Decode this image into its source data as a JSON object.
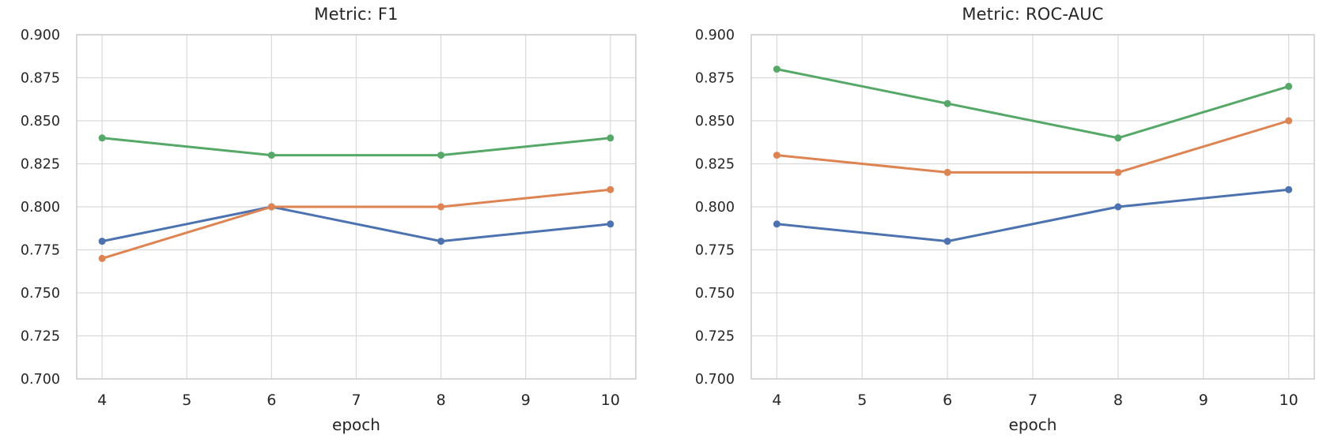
{
  "palette": {
    "blue": "#4C72B0",
    "orange": "#DD8452",
    "green": "#55A868",
    "grid": "#d9d9d9",
    "axis": "#cccccc",
    "text": "#262626",
    "background": "#ffffff"
  },
  "chart_data": [
    {
      "type": "line",
      "title": "Metric: F1",
      "xlabel": "epoch",
      "ylabel": "",
      "x": [
        4,
        6,
        8,
        10
      ],
      "xticks": [
        4,
        5,
        6,
        7,
        8,
        9,
        10
      ],
      "xtick_labels": [
        "4",
        "5",
        "6",
        "7",
        "8",
        "9",
        "10"
      ],
      "yticks": [
        0.7,
        0.725,
        0.75,
        0.775,
        0.8,
        0.825,
        0.85,
        0.875,
        0.9
      ],
      "ytick_labels": [
        "0.700",
        "0.725",
        "0.750",
        "0.775",
        "0.800",
        "0.825",
        "0.850",
        "0.875",
        "0.900"
      ],
      "xlim": [
        3.7,
        10.3
      ],
      "ylim": [
        0.7,
        0.9
      ],
      "grid": true,
      "legend": "none",
      "series": [
        {
          "color": "#4C72B0",
          "values": [
            0.78,
            0.8,
            0.78,
            0.79
          ]
        },
        {
          "color": "#DD8452",
          "values": [
            0.77,
            0.8,
            0.8,
            0.81
          ]
        },
        {
          "color": "#55A868",
          "values": [
            0.84,
            0.83,
            0.83,
            0.84
          ]
        }
      ]
    },
    {
      "type": "line",
      "title": "Metric: ROC-AUC",
      "xlabel": "epoch",
      "ylabel": "",
      "x": [
        4,
        6,
        8,
        10
      ],
      "xticks": [
        4,
        5,
        6,
        7,
        8,
        9,
        10
      ],
      "xtick_labels": [
        "4",
        "5",
        "6",
        "7",
        "8",
        "9",
        "10"
      ],
      "yticks": [
        0.7,
        0.725,
        0.75,
        0.775,
        0.8,
        0.825,
        0.85,
        0.875,
        0.9
      ],
      "ytick_labels": [
        "0.700",
        "0.725",
        "0.750",
        "0.775",
        "0.800",
        "0.825",
        "0.850",
        "0.875",
        "0.900"
      ],
      "xlim": [
        3.7,
        10.3
      ],
      "ylim": [
        0.7,
        0.9
      ],
      "grid": true,
      "legend": "none",
      "series": [
        {
          "color": "#4C72B0",
          "values": [
            0.79,
            0.78,
            0.8,
            0.81
          ]
        },
        {
          "color": "#DD8452",
          "values": [
            0.83,
            0.82,
            0.82,
            0.85
          ]
        },
        {
          "color": "#55A868",
          "values": [
            0.88,
            0.86,
            0.84,
            0.87
          ]
        }
      ]
    }
  ]
}
